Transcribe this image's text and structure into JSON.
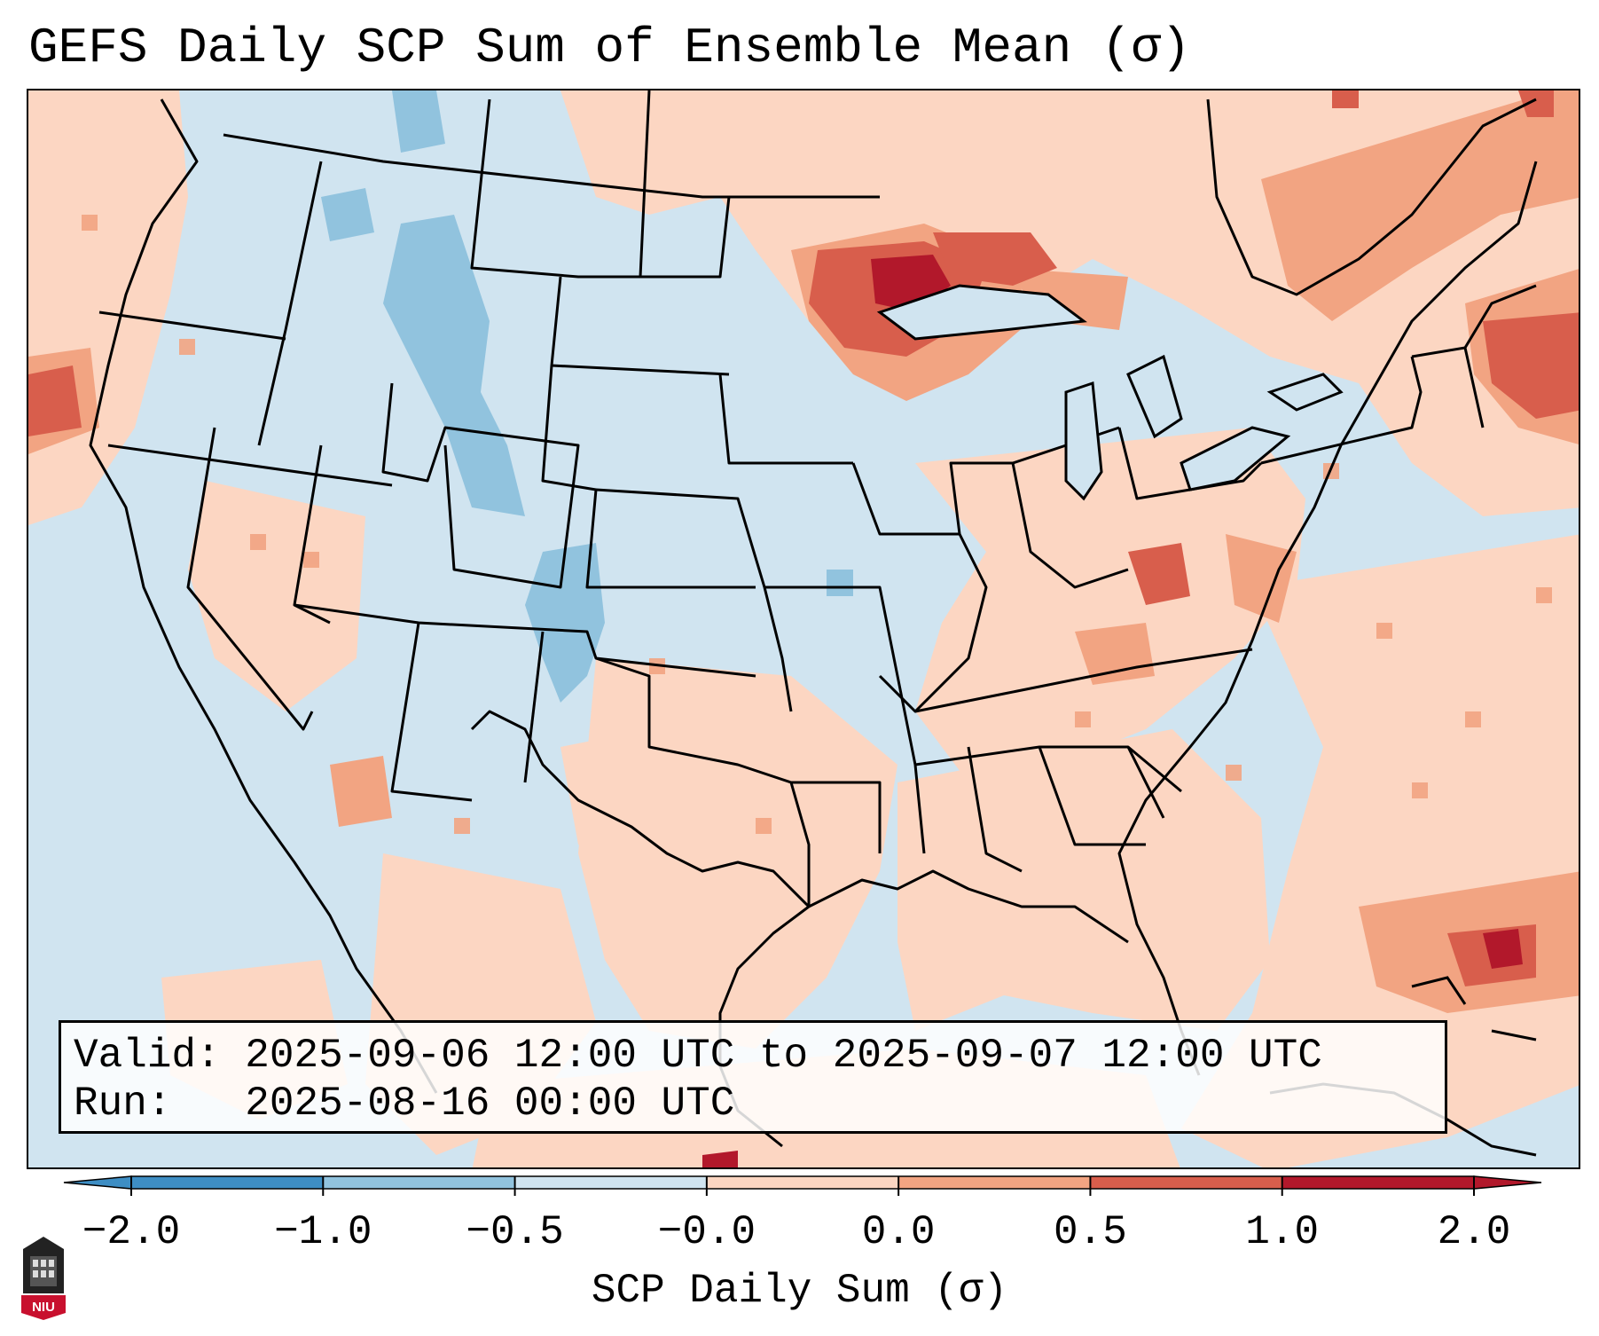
{
  "title": "GEFS Daily SCP Sum of Ensemble Mean (σ)",
  "info": {
    "valid_label": "Valid:",
    "valid_value": "2025-09-06 12:00 UTC to 2025-09-07 12:00 UTC",
    "run_label": "Run:",
    "run_value": "2025-08-16 00:00 UTC"
  },
  "colorbar": {
    "label": "SCP Daily Sum (σ)",
    "ticks": [
      "−2.0",
      "−1.0",
      "−0.5",
      "−0.0",
      "0.0",
      "0.5",
      "1.0",
      "2.0"
    ],
    "colors": [
      "#3e8ec4",
      "#91c3de",
      "#d0e4f0",
      "#f6f6f6",
      "#fcd6c2",
      "#f2a482",
      "#d85e4c",
      "#b2182b"
    ],
    "extend": "both"
  },
  "map": {
    "background_color": "#d0e4f0",
    "anomaly_regions": [
      {
        "name": "upper-midwest-maximum",
        "level": "high"
      },
      {
        "name": "great-lakes-region",
        "level": "positive"
      },
      {
        "name": "ohio-valley-region",
        "level": "positive"
      },
      {
        "name": "tennessee-valley",
        "level": "positive"
      },
      {
        "name": "western-atlantic",
        "level": "positive"
      },
      {
        "name": "northern-rockies",
        "level": "negative"
      },
      {
        "name": "colorado-rockies",
        "level": "negative"
      }
    ]
  },
  "logo": {
    "text": "NIU"
  }
}
